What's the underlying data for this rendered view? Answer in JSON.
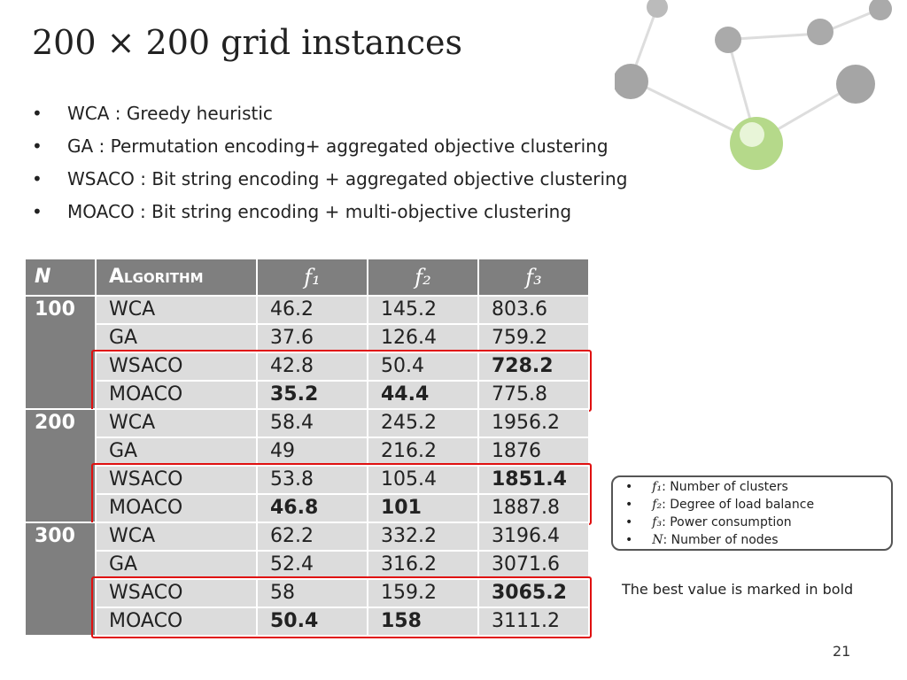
{
  "title": "200 × 200 grid instances",
  "bullets": [
    "WCA : Greedy heuristic",
    "GA : Permutation encoding+ aggregated objective clustering",
    "WSACO : Bit string encoding + aggregated objective clustering",
    "MOACO : Bit string encoding + multi-objective clustering"
  ],
  "table": {
    "header": [
      "N",
      "Algorithm",
      "f₁",
      "f₂",
      "f₃"
    ],
    "groups": [
      {
        "n": "100",
        "rows": [
          [
            "WCA",
            "46.2",
            "145.2",
            "803.6"
          ],
          [
            "GA",
            "37.6",
            "126.4",
            "759.2"
          ],
          [
            "WSACO",
            "42.8",
            "50.4",
            "728.2"
          ],
          [
            "MOACO",
            "35.2",
            "44.4",
            "775.8"
          ]
        ],
        "bold": [
          [],
          [],
          [
            3
          ],
          [
            1,
            2
          ]
        ]
      },
      {
        "n": "200",
        "rows": [
          [
            "WCA",
            "58.4",
            "245.2",
            "1956.2"
          ],
          [
            "GA",
            "49",
            "216.2",
            "1876"
          ],
          [
            "WSACO",
            "53.8",
            "105.4",
            "1851.4"
          ],
          [
            "MOACO",
            "46.8",
            "101",
            "1887.8"
          ]
        ],
        "bold": [
          [],
          [],
          [
            3
          ],
          [
            1,
            2
          ]
        ]
      },
      {
        "n": "300",
        "rows": [
          [
            "WCA",
            "62.2",
            "332.2",
            "3196.4"
          ],
          [
            "GA",
            "52.4",
            "316.2",
            "3071.6"
          ],
          [
            "WSACO",
            "58",
            "159.2",
            "3065.2"
          ],
          [
            "MOACO",
            "50.4",
            "158",
            "3111.2"
          ]
        ],
        "bold": [
          [],
          [],
          [
            3
          ],
          [
            1,
            2
          ]
        ]
      }
    ]
  },
  "legend": [
    {
      "symbol": "f₁",
      "text": ": Number of clusters"
    },
    {
      "symbol": "f₂",
      "text": ": Degree of load balance"
    },
    {
      "symbol": "f₃",
      "text": ": Power consumption"
    },
    {
      "symbol": "N",
      "text": ": Number of nodes"
    }
  ],
  "note": "The best value is marked in bold",
  "page_number": "21"
}
